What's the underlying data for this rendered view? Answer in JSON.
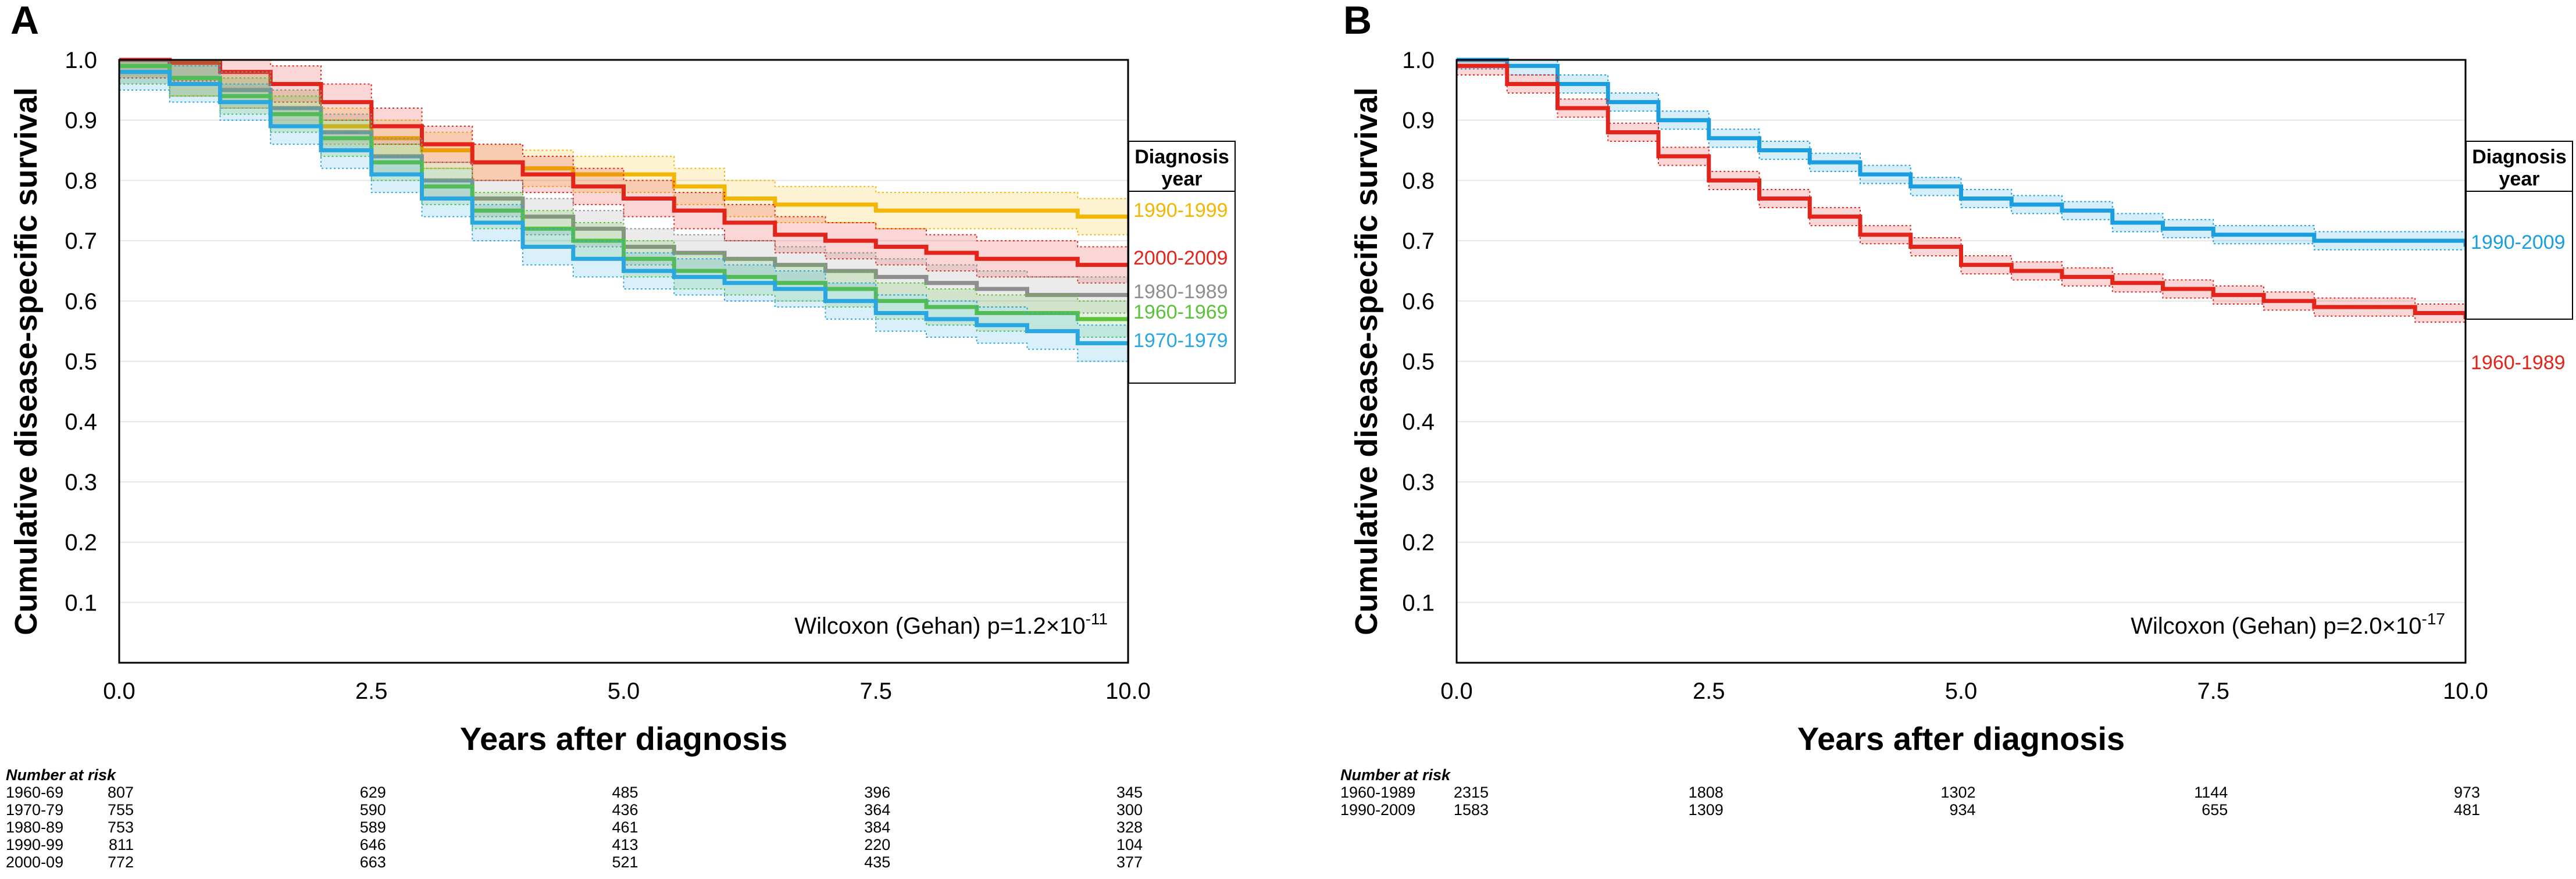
{
  "figure": {
    "panels": [
      {
        "label": "A",
        "stats_prefix": "Wilcoxon (Gehan) p=1.2×10",
        "stats_exp": "-11",
        "legend_title_line1": "Diagnosis",
        "legend_title_line2": "year",
        "risk_title": "Number at risk",
        "risk_rows": [
          {
            "label": "1960-69",
            "values": [
              "807",
              "629",
              "485",
              "396",
              "345"
            ]
          },
          {
            "label": "1970-79",
            "values": [
              "755",
              "590",
              "436",
              "364",
              "300"
            ]
          },
          {
            "label": "1980-89",
            "values": [
              "753",
              "589",
              "461",
              "384",
              "328"
            ]
          },
          {
            "label": "1990-99",
            "values": [
              "811",
              "646",
              "413",
              "220",
              "104"
            ]
          },
          {
            "label": "2000-09",
            "values": [
              "772",
              "663",
              "521",
              "435",
              "377"
            ]
          }
        ]
      },
      {
        "label": "B",
        "stats_prefix": "Wilcoxon (Gehan) p=2.0×10",
        "stats_exp": "-17",
        "legend_title_line1": "Diagnosis",
        "legend_title_line2": "year",
        "risk_title": "Number at risk",
        "risk_rows": [
          {
            "label": "1960-1989",
            "values": [
              "2315",
              "1808",
              "1302",
              "1144",
              "973"
            ]
          },
          {
            "label": "1990-2009",
            "values": [
              "1583",
              "1309",
              "934",
              "655",
              "481"
            ]
          }
        ]
      }
    ]
  },
  "chart_data": [
    {
      "type": "line",
      "subtype": "kaplan-meier step",
      "title": "A",
      "xlabel": "Years after diagnosis",
      "ylabel": "Cumulative disease-specific survival",
      "xlim": [
        0,
        10
      ],
      "ylim": [
        0,
        1
      ],
      "xticks": [
        "0.0",
        "2.5",
        "5.0",
        "7.5",
        "10.0"
      ],
      "yticks": [
        "0.1",
        "0.2",
        "0.3",
        "0.4",
        "0.5",
        "0.6",
        "0.7",
        "0.8",
        "0.9",
        "1.0"
      ],
      "legend_title": "Diagnosis year",
      "legend_position": "right",
      "confidence_band_halfwidth": 0.03,
      "series": [
        {
          "name": "1990-1999",
          "color": "#f2b705",
          "x": [
            0,
            0.5,
            1,
            1.5,
            2,
            2.5,
            3,
            3.5,
            4,
            4.5,
            5,
            5.5,
            6,
            6.5,
            7,
            7.5,
            8,
            8.5,
            9,
            9.5,
            10
          ],
          "y": [
            1.0,
            0.97,
            0.95,
            0.92,
            0.89,
            0.87,
            0.85,
            0.83,
            0.82,
            0.81,
            0.81,
            0.79,
            0.77,
            0.76,
            0.76,
            0.75,
            0.75,
            0.75,
            0.75,
            0.74,
            0.74
          ]
        },
        {
          "name": "2000-2009",
          "color": "#e3241b",
          "x": [
            0,
            0.5,
            1,
            1.5,
            2,
            2.5,
            3,
            3.5,
            4,
            4.5,
            5,
            5.5,
            6,
            6.5,
            7,
            7.5,
            8,
            8.5,
            9,
            9.5,
            10
          ],
          "y": [
            1.0,
            0.995,
            0.98,
            0.96,
            0.93,
            0.89,
            0.86,
            0.83,
            0.81,
            0.79,
            0.77,
            0.75,
            0.73,
            0.71,
            0.7,
            0.69,
            0.68,
            0.67,
            0.67,
            0.66,
            0.66
          ]
        },
        {
          "name": "1980-1989",
          "color": "#8e8e8e",
          "x": [
            0,
            0.5,
            1,
            1.5,
            2,
            2.5,
            3,
            3.5,
            4,
            4.5,
            5,
            5.5,
            6,
            6.5,
            7,
            7.5,
            8,
            8.5,
            9,
            9.5,
            10
          ],
          "y": [
            0.99,
            0.97,
            0.95,
            0.92,
            0.88,
            0.84,
            0.8,
            0.77,
            0.74,
            0.72,
            0.69,
            0.68,
            0.67,
            0.66,
            0.65,
            0.64,
            0.63,
            0.62,
            0.61,
            0.61,
            0.61
          ]
        },
        {
          "name": "1960-1969",
          "color": "#5cc13b",
          "x": [
            0,
            0.5,
            1,
            1.5,
            2,
            2.5,
            3,
            3.5,
            4,
            4.5,
            5,
            5.5,
            6,
            6.5,
            7,
            7.5,
            8,
            8.5,
            9,
            9.5,
            10
          ],
          "y": [
            0.99,
            0.97,
            0.94,
            0.91,
            0.87,
            0.83,
            0.79,
            0.75,
            0.72,
            0.7,
            0.67,
            0.65,
            0.64,
            0.63,
            0.62,
            0.6,
            0.59,
            0.58,
            0.58,
            0.57,
            0.57
          ]
        },
        {
          "name": "1970-1979",
          "color": "#2aa7e1",
          "x": [
            0,
            0.5,
            1,
            1.5,
            2,
            2.5,
            3,
            3.5,
            4,
            4.5,
            5,
            5.5,
            6,
            6.5,
            7,
            7.5,
            8,
            8.5,
            9,
            9.5,
            10
          ],
          "y": [
            0.98,
            0.96,
            0.93,
            0.89,
            0.85,
            0.81,
            0.77,
            0.73,
            0.69,
            0.67,
            0.65,
            0.64,
            0.63,
            0.62,
            0.6,
            0.58,
            0.57,
            0.56,
            0.55,
            0.53,
            0.53
          ]
        }
      ]
    },
    {
      "type": "line",
      "subtype": "kaplan-meier step",
      "title": "B",
      "xlabel": "Years after diagnosis",
      "ylabel": "Cumulative disease-specific survival",
      "xlim": [
        0,
        10
      ],
      "ylim": [
        0,
        1
      ],
      "xticks": [
        "0.0",
        "2.5",
        "5.0",
        "7.5",
        "10.0"
      ],
      "yticks": [
        "0.1",
        "0.2",
        "0.3",
        "0.4",
        "0.5",
        "0.6",
        "0.7",
        "0.8",
        "0.9",
        "1.0"
      ],
      "legend_title": "Diagnosis year",
      "legend_position": "right",
      "confidence_band_halfwidth": 0.015,
      "series": [
        {
          "name": "1990-2009",
          "color": "#1a9ee0",
          "x": [
            0,
            0.5,
            1,
            1.5,
            2,
            2.5,
            3,
            3.5,
            4,
            4.5,
            5,
            5.5,
            6,
            6.5,
            7,
            7.5,
            8,
            8.5,
            9,
            9.5,
            10
          ],
          "y": [
            1.0,
            0.99,
            0.96,
            0.93,
            0.9,
            0.87,
            0.85,
            0.83,
            0.81,
            0.79,
            0.77,
            0.76,
            0.75,
            0.73,
            0.72,
            0.71,
            0.71,
            0.7,
            0.7,
            0.7,
            0.69
          ]
        },
        {
          "name": "1960-1989",
          "color": "#e3241b",
          "x": [
            0,
            0.5,
            1,
            1.5,
            2,
            2.5,
            3,
            3.5,
            4,
            4.5,
            5,
            5.5,
            6,
            6.5,
            7,
            7.5,
            8,
            8.5,
            9,
            9.5,
            10
          ],
          "y": [
            0.99,
            0.96,
            0.92,
            0.88,
            0.84,
            0.8,
            0.77,
            0.74,
            0.71,
            0.69,
            0.66,
            0.65,
            0.64,
            0.63,
            0.62,
            0.61,
            0.6,
            0.59,
            0.59,
            0.58,
            0.57
          ]
        }
      ]
    }
  ]
}
